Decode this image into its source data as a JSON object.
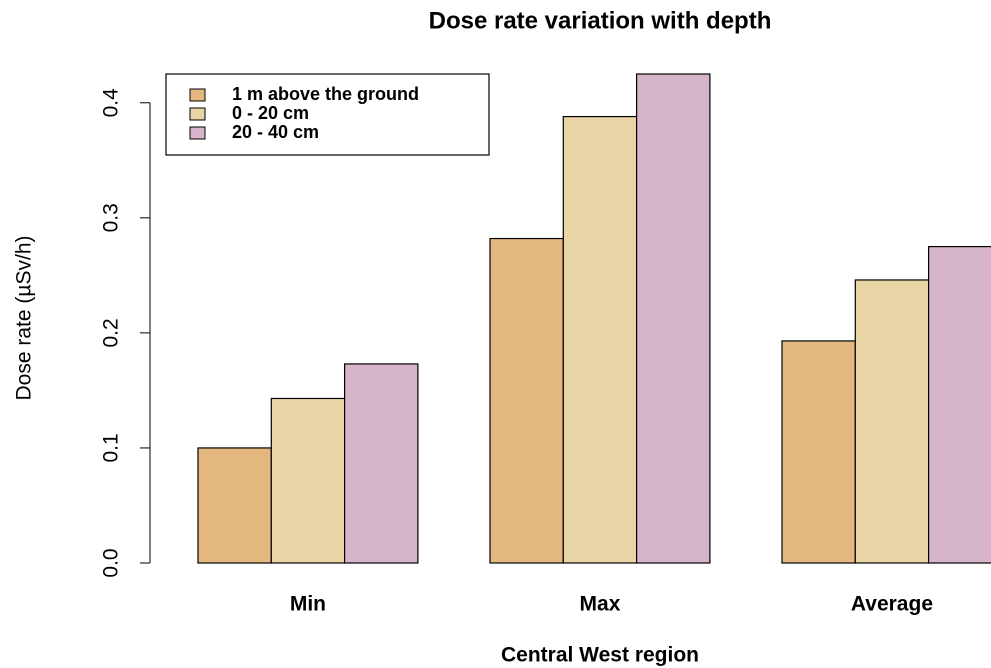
{
  "chart_data": {
    "type": "bar",
    "title": "Dose rate variation with depth",
    "x_label": "Central West region",
    "y_label": "Dose rate (µSv/h)",
    "categories": [
      "Min",
      "Max",
      "Average"
    ],
    "series": [
      {
        "name": "1 m above the ground",
        "color": "#e5b881",
        "values": [
          0.1,
          0.282,
          0.193
        ]
      },
      {
        "name": "0 - 20 cm",
        "color": "#e8d4a4",
        "values": [
          0.143,
          0.388,
          0.246
        ]
      },
      {
        "name": "20 - 40 cm",
        "color": "#d6b4c9",
        "values": [
          0.173,
          0.425,
          0.275
        ]
      }
    ],
    "ylim": [
      0,
      0.425
    ],
    "yticks": [
      {
        "value": 0,
        "label": "0.0"
      },
      0.1,
      0.2,
      0.3,
      0.4
    ],
    "legend": "top-left",
    "grid": false
  }
}
